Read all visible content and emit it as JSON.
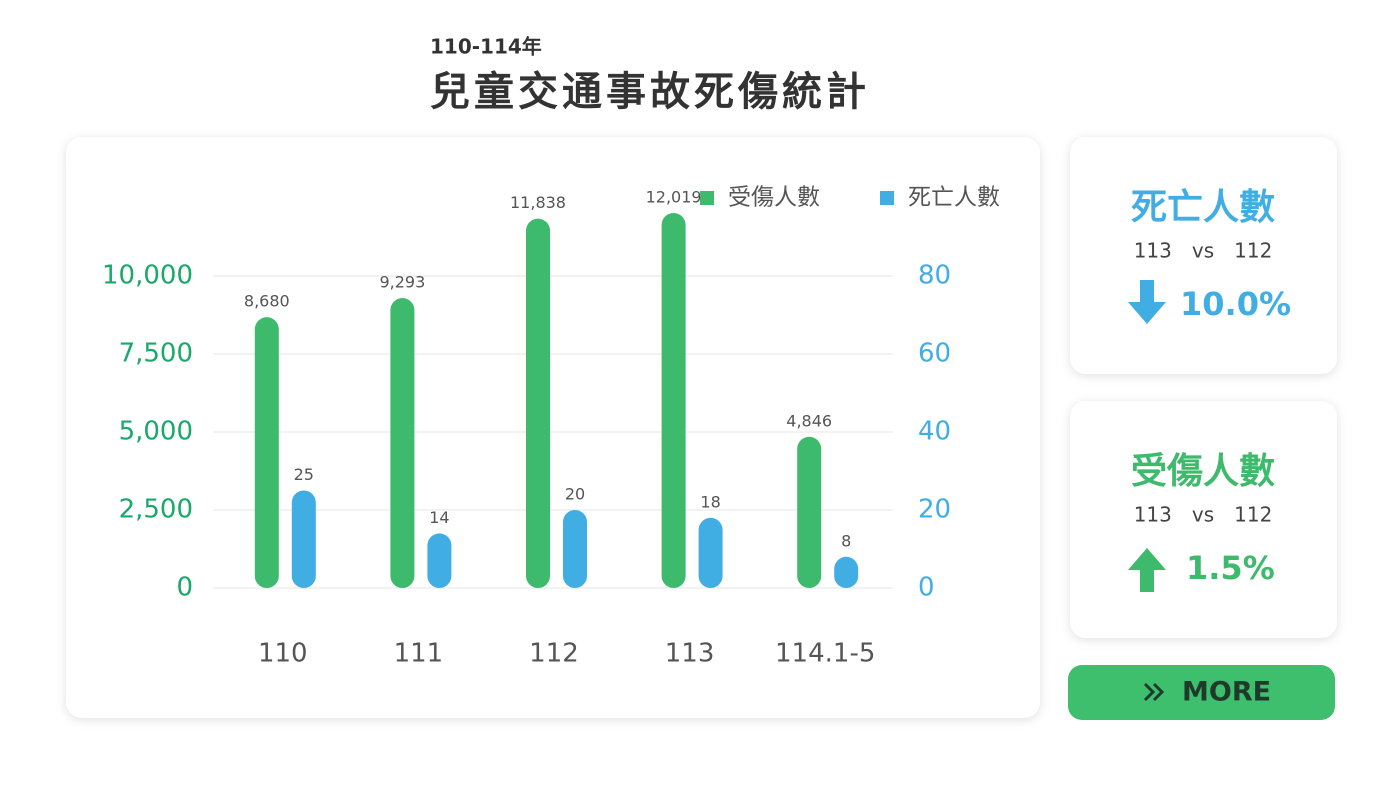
{
  "chart_data": {
    "type": "bar",
    "subtitle": "110-114年",
    "title": "兒童交通事故死傷統計",
    "categories": [
      "110",
      "111",
      "112",
      "113",
      "114.1-5"
    ],
    "series": [
      {
        "name": "受傷人數",
        "color": "#3dba6c",
        "values": [
          8680,
          9293,
          11838,
          12019,
          4846
        ],
        "value_labels": [
          "8,680",
          "9,293",
          "11,838",
          "12,019",
          "4,846"
        ]
      },
      {
        "name": "死亡人數",
        "color": "#41aee3",
        "axis": "y2",
        "values": [
          25,
          14,
          20,
          18,
          8
        ]
      }
    ],
    "ylim": [
      0,
      12500
    ],
    "yticks": [
      0,
      {
        "value": 2500,
        "label": "2,500"
      },
      {
        "value": 5000,
        "label": "5,000"
      },
      {
        "value": 7500,
        "label": "7,500"
      },
      {
        "value": 10000,
        "label": "10,000"
      }
    ],
    "y2lim": [
      0,
      100
    ],
    "y2ticks": [
      0,
      20,
      40,
      60,
      80
    ],
    "grid": true,
    "legend": "top-right"
  },
  "cards": [
    {
      "title": "死亡人數",
      "compare": "113　vs　112",
      "change": "10.0%",
      "direction": "down",
      "color": "#41aee3"
    },
    {
      "title": "受傷人數",
      "compare": "113　vs　112",
      "change": "1.5%",
      "direction": "up",
      "color": "#3dba6c"
    }
  ],
  "button": {
    "label": "MORE"
  }
}
